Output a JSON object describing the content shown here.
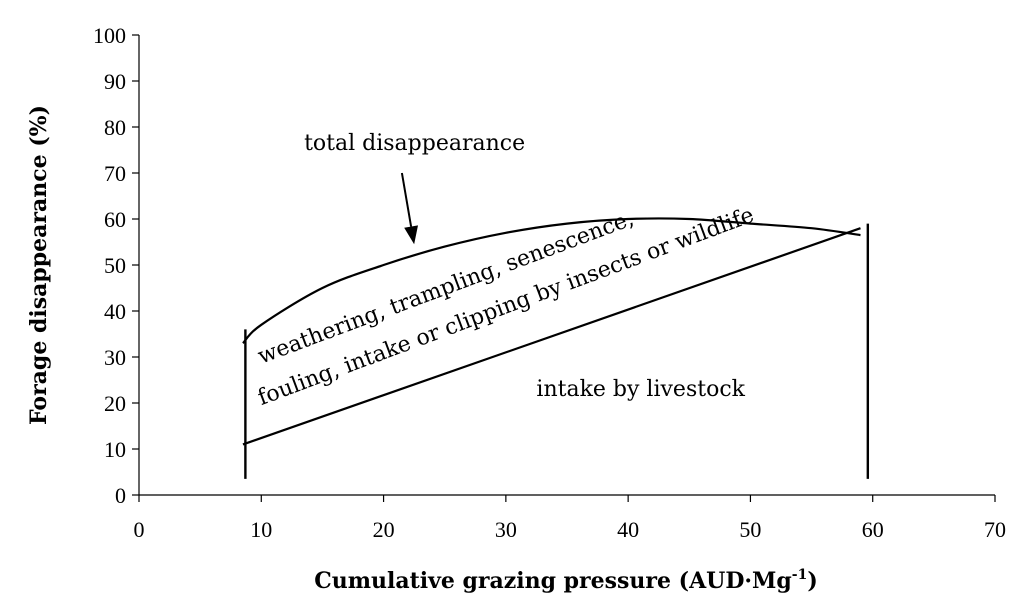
{
  "chart_data": {
    "type": "line",
    "xlabel": "Cumulative grazing pressure (AUD·Mg",
    "xlabel_sup": "-1",
    "xlabel_end": ")",
    "ylabel": "Forage disappearance (%)",
    "xlim": [
      0,
      70
    ],
    "ylim": [
      0,
      100
    ],
    "x_ticks": [
      "0",
      "10",
      "20",
      "30",
      "40",
      "50",
      "60",
      "70"
    ],
    "y_ticks": [
      "0",
      "10",
      "20",
      "30",
      "40",
      "50",
      "60",
      "70",
      "80",
      "90",
      "100"
    ],
    "grid": false,
    "series": [
      {
        "x": [
          8.5,
          10,
          15,
          20,
          25,
          30,
          35,
          40,
          45,
          50,
          55,
          59
        ],
        "y": [
          33,
          37,
          45,
          50,
          54,
          57,
          59,
          60,
          60,
          59,
          58,
          56.5
        ]
      },
      {
        "x": [
          8.5,
          59
        ],
        "y": [
          11,
          58
        ]
      }
    ],
    "vertical_lines": [
      {
        "x": 8.7,
        "y": [
          3.5,
          36
        ]
      },
      {
        "x": 59.6,
        "y": [
          3.5,
          59
        ]
      }
    ],
    "annotations": [
      {
        "text": "total disappearance",
        "x": 13.5,
        "y": 75
      },
      {
        "text": "weathering, trampling, senescence,",
        "x": 10,
        "y": 28.5,
        "rotate": -20.5
      },
      {
        "text": "fouling, intake or clipping by insects or wildlife",
        "x": 10,
        "y": 19.5,
        "rotate": -20.5
      },
      {
        "text": "intake by livestock",
        "x": 32.5,
        "y": 21.5
      }
    ],
    "arrow": {
      "from": [
        21.5,
        70
      ],
      "to": [
        22.5,
        54.5
      ]
    }
  }
}
